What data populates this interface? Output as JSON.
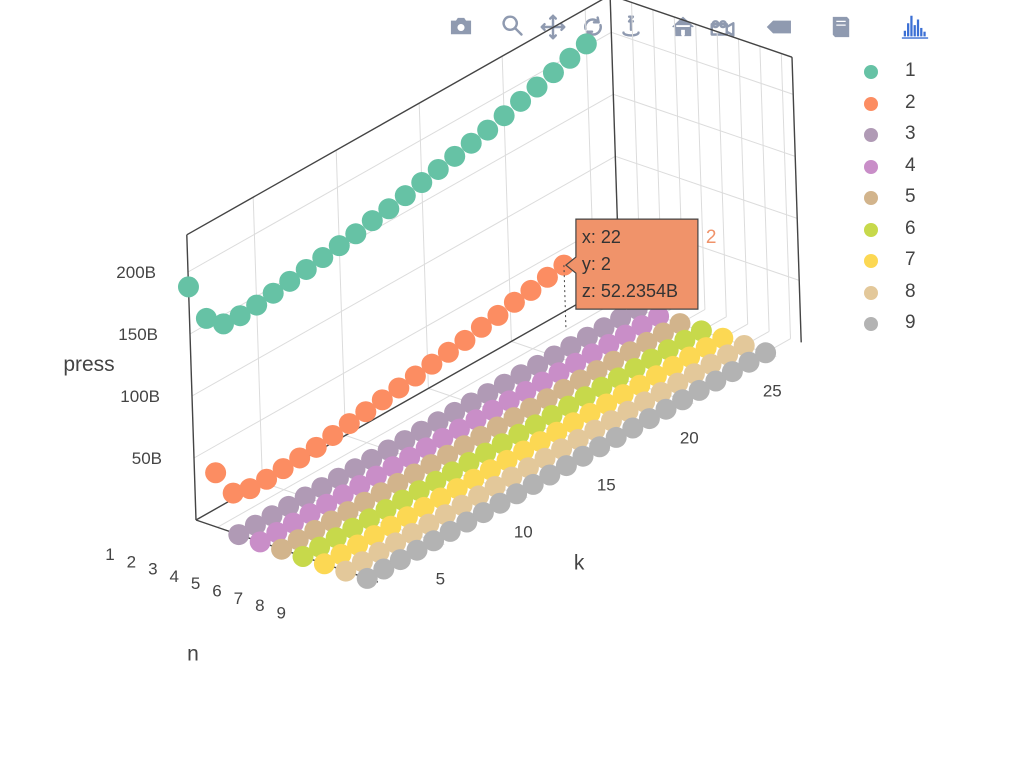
{
  "modebar": {
    "buttons": [
      {
        "name": "camera-icon",
        "color": "#8f9ab0"
      },
      {
        "name": "zoom-icon",
        "color": "#8f9ab0"
      },
      {
        "name": "pan-icon",
        "color": "#8f9ab0"
      },
      {
        "name": "orbit-rotation-icon",
        "color": "#8f9ab0"
      },
      {
        "name": "turntable-rotation-icon",
        "color": "#8f9ab0"
      },
      {
        "name": "home-icon",
        "color": "#8f9ab0"
      },
      {
        "name": "video-camera-icon",
        "color": "#8f9ab0"
      },
      {
        "name": "spike-lines-icon",
        "color": "#8f9ab0"
      },
      {
        "name": "book-icon",
        "color": "#8f9ab0"
      },
      {
        "name": "plotly-logo-icon",
        "color": "#3b6fd4"
      }
    ]
  },
  "chart_data": {
    "type": "scatter3d",
    "axes": {
      "x": {
        "title": "k",
        "ticks": [
          "5",
          "10",
          "15",
          "20",
          "25"
        ],
        "range": [
          1,
          25
        ]
      },
      "y": {
        "title": "n",
        "ticks": [
          "1",
          "2",
          "3",
          "4",
          "5",
          "6",
          "7",
          "8",
          "9"
        ],
        "range": [
          1,
          9
        ]
      },
      "z": {
        "title": "press",
        "ticks": [
          "50B",
          "100B",
          "150B",
          "200B"
        ],
        "range": [
          0,
          230
        ]
      }
    },
    "grid": true,
    "legend_placement": "top-right",
    "series": [
      {
        "name": "1",
        "color": "#66c2a5",
        "y": 1,
        "x": [
          1,
          2,
          3,
          4,
          5,
          6,
          7,
          8,
          9,
          10,
          11,
          12,
          13,
          14,
          15,
          16,
          17,
          18,
          19,
          20,
          21,
          22,
          23,
          24,
          25
        ],
        "z": [
          188,
          155,
          143,
          142,
          143,
          145,
          147,
          149,
          151,
          153,
          155,
          158,
          160,
          163,
          166,
          169,
          172,
          175,
          178,
          182,
          186,
          190,
          194,
          198,
          202
        ]
      },
      {
        "name": "2",
        "color": "#fc8d62",
        "y": 2,
        "x": [
          1,
          2,
          3,
          4,
          5,
          6,
          7,
          8,
          9,
          10,
          11,
          12,
          13,
          14,
          15,
          16,
          17,
          18,
          19,
          20,
          21,
          22
        ],
        "z": [
          44,
          20,
          16,
          16,
          17,
          18,
          19,
          21,
          23,
          25,
          27,
          29,
          31,
          33,
          35,
          37,
          40,
          42,
          45,
          47,
          50,
          52.2354
        ]
      },
      {
        "name": "3",
        "color": "#b09ab5",
        "y": 3,
        "x": [
          1,
          2,
          3,
          4,
          5,
          6,
          7,
          8,
          9,
          10,
          11,
          12,
          13,
          14,
          15,
          16,
          17,
          18,
          19,
          20,
          21,
          22,
          23,
          24,
          25
        ],
        "z": [
          0,
          0,
          0,
          0,
          0,
          0,
          0,
          0,
          0,
          0,
          0,
          0,
          0,
          0,
          0,
          0,
          0,
          0,
          0,
          0,
          0,
          0,
          0,
          0,
          0
        ]
      },
      {
        "name": "4",
        "color": "#c98ec8",
        "y": 4,
        "x": [
          1,
          2,
          3,
          4,
          5,
          6,
          7,
          8,
          9,
          10,
          11,
          12,
          13,
          14,
          15,
          16,
          17,
          18,
          19,
          20,
          21,
          22,
          23,
          24,
          25
        ],
        "z": [
          0,
          0,
          0,
          0,
          0,
          0,
          0,
          0,
          0,
          0,
          0,
          0,
          0,
          0,
          0,
          0,
          0,
          0,
          0,
          0,
          0,
          0,
          0,
          0,
          0
        ]
      },
      {
        "name": "5",
        "color": "#d2b48c",
        "y": 5,
        "x": [
          1,
          2,
          3,
          4,
          5,
          6,
          7,
          8,
          9,
          10,
          11,
          12,
          13,
          14,
          15,
          16,
          17,
          18,
          19,
          20,
          21,
          22,
          23,
          24,
          25
        ],
        "z": [
          0,
          0,
          0,
          0,
          0,
          0,
          0,
          0,
          0,
          0,
          0,
          0,
          0,
          0,
          0,
          0,
          0,
          0,
          0,
          0,
          0,
          0,
          0,
          0,
          0
        ]
      },
      {
        "name": "6",
        "color": "#c7d94b",
        "y": 6,
        "x": [
          1,
          2,
          3,
          4,
          5,
          6,
          7,
          8,
          9,
          10,
          11,
          12,
          13,
          14,
          15,
          16,
          17,
          18,
          19,
          20,
          21,
          22,
          23,
          24,
          25
        ],
        "z": [
          0,
          0,
          0,
          0,
          0,
          0,
          0,
          0,
          0,
          0,
          0,
          0,
          0,
          0,
          0,
          0,
          0,
          0,
          0,
          0,
          0,
          0,
          0,
          0,
          0
        ]
      },
      {
        "name": "7",
        "color": "#fcd853",
        "y": 7,
        "x": [
          1,
          2,
          3,
          4,
          5,
          6,
          7,
          8,
          9,
          10,
          11,
          12,
          13,
          14,
          15,
          16,
          17,
          18,
          19,
          20,
          21,
          22,
          23,
          24,
          25
        ],
        "z": [
          0,
          0,
          0,
          0,
          0,
          0,
          0,
          0,
          0,
          0,
          0,
          0,
          0,
          0,
          0,
          0,
          0,
          0,
          0,
          0,
          0,
          0,
          0,
          0,
          0
        ]
      },
      {
        "name": "8",
        "color": "#e3c89a",
        "y": 8,
        "x": [
          1,
          2,
          3,
          4,
          5,
          6,
          7,
          8,
          9,
          10,
          11,
          12,
          13,
          14,
          15,
          16,
          17,
          18,
          19,
          20,
          21,
          22,
          23,
          24,
          25
        ],
        "z": [
          0,
          0,
          0,
          0,
          0,
          0,
          0,
          0,
          0,
          0,
          0,
          0,
          0,
          0,
          0,
          0,
          0,
          0,
          0,
          0,
          0,
          0,
          0,
          0,
          0
        ]
      },
      {
        "name": "9",
        "color": "#b3b3b3",
        "y": 9,
        "x": [
          1,
          2,
          3,
          4,
          5,
          6,
          7,
          8,
          9,
          10,
          11,
          12,
          13,
          14,
          15,
          16,
          17,
          18,
          19,
          20,
          21,
          22,
          23,
          24,
          25
        ],
        "z": [
          0,
          0,
          0,
          0,
          0,
          0,
          0,
          0,
          0,
          0,
          0,
          0,
          0,
          0,
          0,
          0,
          0,
          0,
          0,
          0,
          0,
          0,
          0,
          0,
          0
        ]
      }
    ],
    "hover": {
      "series": "2",
      "lines": [
        "x: 22",
        "y: 2",
        "z: 52.2354B"
      ],
      "tag": "2",
      "color": "#f0936a"
    }
  }
}
